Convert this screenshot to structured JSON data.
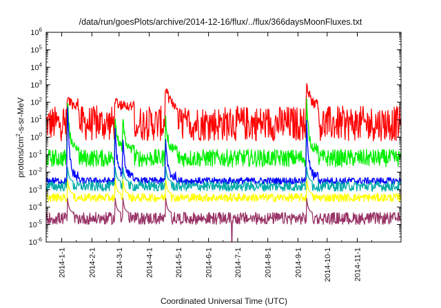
{
  "chart_data": {
    "type": "line",
    "title": "/data/run/goesPlots/archive/2014-12-16/flux/../flux/366daysMoonFluxes.txt",
    "xlabel": "Coordinated Universal Time (UTC)",
    "ylabel_base": "protons/cm",
    "ylabel_sup": "2",
    "ylabel_rest": "-s-sr-MeV",
    "yscale": "log",
    "ylim": [
      1e-06,
      1000000.0
    ],
    "xlim": [
      "2013-12-16",
      "2014-12-16"
    ],
    "grid": false,
    "legend": "none",
    "x_ticks": [
      "2014-1-1",
      "2014-2-1",
      "2014-3-1",
      "2014-4-1",
      "2014-5-1",
      "2014-6-1",
      "2014-7-1",
      "2014-8-1",
      "2014-9-1",
      "2014-10-1",
      "2014-11-1"
    ],
    "y_ticks": [
      {
        "base": "10",
        "exp": "-6"
      },
      {
        "base": "10",
        "exp": "-5"
      },
      {
        "base": "10",
        "exp": "-4"
      },
      {
        "base": "10",
        "exp": "-3"
      },
      {
        "base": "10",
        "exp": "-2"
      },
      {
        "base": "10",
        "exp": "-1"
      },
      {
        "base": "10",
        "exp": "0"
      },
      {
        "base": "10",
        "exp": "1"
      },
      {
        "base": "10",
        "exp": "2"
      },
      {
        "base": "10",
        "exp": "3"
      },
      {
        "base": "10",
        "exp": "4"
      },
      {
        "base": "10",
        "exp": "5"
      },
      {
        "base": "10",
        "exp": "6"
      }
    ],
    "events": [
      {
        "date": "2014-01-07",
        "red_peak": 200,
        "green_peak": 150,
        "blue_peak": 30
      },
      {
        "date": "2014-02-25",
        "red_peak": 150,
        "green_peak": 20,
        "blue_peak": 2
      },
      {
        "date": "2014-03-05",
        "red_peak": 60,
        "green_peak": 10,
        "blue_peak": 0.8
      },
      {
        "date": "2014-04-18",
        "red_peak": 800,
        "green_peak": 10,
        "blue_peak": 0.5
      },
      {
        "date": "2014-09-10",
        "red_peak": 1500,
        "green_peak": 100,
        "blue_peak": 5
      }
    ],
    "series": [
      {
        "color": "#ff0000",
        "baseline": [
          0.6,
          60
        ]
      },
      {
        "color": "#00ee00",
        "baseline": [
          0.02,
          0.2
        ]
      },
      {
        "color": "#0000ff",
        "baseline": [
          0.002,
          0.005
        ]
      },
      {
        "color": "#00aaaa",
        "baseline": [
          0.0008,
          0.003
        ]
      },
      {
        "color": "#ffff00",
        "baseline": [
          0.0002,
          0.0006
        ]
      },
      {
        "color": "#993366",
        "baseline": [
          1e-05,
          5e-05
        ]
      }
    ]
  }
}
